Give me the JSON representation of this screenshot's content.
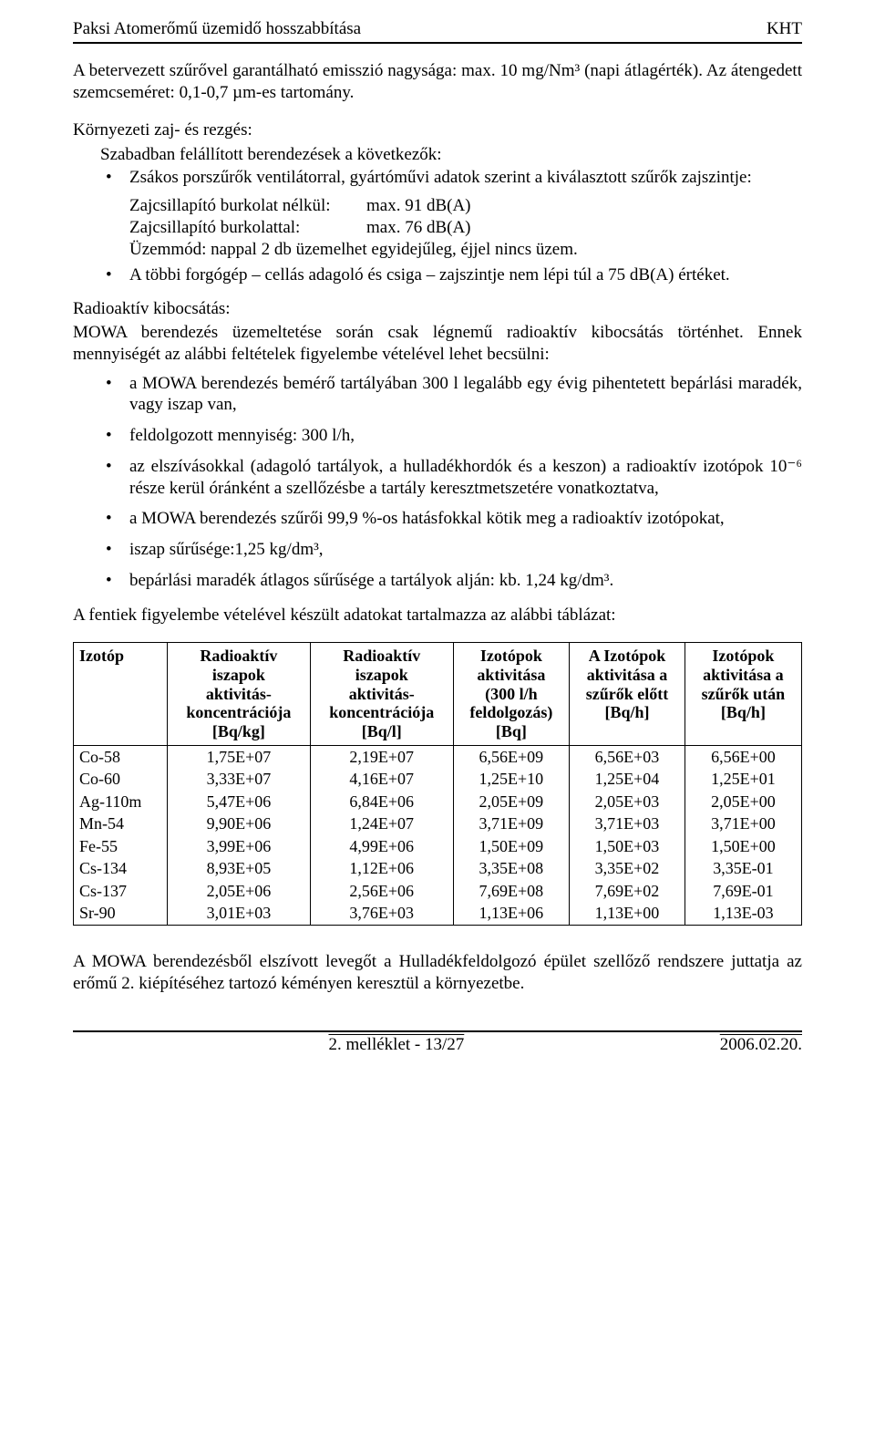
{
  "header": {
    "left": "Paksi Atomerőmű üzemidő hosszabbítása",
    "right": "KHT"
  },
  "intro": {
    "p1": "A betervezett szűrővel garantálható emisszió nagysága: max. 10 mg/Nm³ (napi átlagérték). Az átengedett  szemcseméret: 0,1-0,7 µm-es tartomány.",
    "noise_label": "Környezeti zaj- és rezgés:",
    "noise_line": "Szabadban felállított berendezések a következők:",
    "bullet1": "Zsákos porszűrők ventilátorral, gyártóművi adatok szerint a kiválasztott  szűrők zajszintje:",
    "pair1_label": "Zajcsillapító burkolat nélkül:",
    "pair1_value": "max. 91 dB(A)",
    "pair2_label": "Zajcsillapító burkolattal:",
    "pair2_value": "max. 76 dB(A)",
    "mode_line": "Üzemmód: nappal 2 db üzemelhet egyidejűleg, éjjel nincs üzem.",
    "bullet2": "A többi forgógép – cellás adagoló és csiga – zajszintje nem lépi túl a 75 dB(A) értéket."
  },
  "radio": {
    "label": "Radioaktív kibocsátás:",
    "text": "MOWA berendezés üzemeltetése során csak légnemű radioaktív kibocsátás történhet. Ennek mennyiségét az alábbi feltételek figyelembe vételével lehet becsülni:",
    "items": [
      "a MOWA berendezés bemérő tartályában 300 l legalább egy évig pihentetett bepárlási maradék, vagy iszap van,",
      "feldolgozott mennyiség: 300 l/h,",
      "az elszívásokkal (adagoló tartályok, a hulladékhordók és a keszon) a radioaktív izotópok 10⁻⁶ része kerül óránként a szellőzésbe a tartály keresztmetszetére vonatkoztatva,",
      "a MOWA berendezés szűrői 99,9 %-os hatásfokkal kötik meg a radioaktív izotópokat,",
      "iszap sűrűsége:1,25 kg/dm³,",
      "bepárlási maradék átlagos sűrűsége a tartályok alján: kb. 1,24 kg/dm³."
    ]
  },
  "table_intro": "A fentiek figyelembe vételével készült adatokat tartalmazza az alábbi táblázat:",
  "table": {
    "headers": [
      "Izotóp",
      "Radioaktív iszapok aktivitás-koncentrációja [Bq/kg]",
      "Radioaktív iszapok aktivitás-koncentrációja [Bq/l]",
      "Izotópok aktivitása (300 l/h feldolgozás) [Bq]",
      "A Izotópok aktivitása a szűrők előtt [Bq/h]",
      "Izotópok aktivitása a szűrők után [Bq/h]"
    ],
    "rows": [
      [
        "Co-58",
        "1,75E+07",
        "2,19E+07",
        "6,56E+09",
        "6,56E+03",
        "6,56E+00"
      ],
      [
        "Co-60",
        "3,33E+07",
        "4,16E+07",
        "1,25E+10",
        "1,25E+04",
        "1,25E+01"
      ],
      [
        "Ag-110m",
        "5,47E+06",
        "6,84E+06",
        "2,05E+09",
        "2,05E+03",
        "2,05E+00"
      ],
      [
        "Mn-54",
        "9,90E+06",
        "1,24E+07",
        "3,71E+09",
        "3,71E+03",
        "3,71E+00"
      ],
      [
        "Fe-55",
        "3,99E+06",
        "4,99E+06",
        "1,50E+09",
        "1,50E+03",
        "1,50E+00"
      ],
      [
        "Cs-134",
        "8,93E+05",
        "1,12E+06",
        "3,35E+08",
        "3,35E+02",
        "3,35E-01"
      ],
      [
        "Cs-137",
        "2,05E+06",
        "2,56E+06",
        "7,69E+08",
        "7,69E+02",
        "7,69E-01"
      ],
      [
        "Sr-90",
        "3,01E+03",
        "3,76E+03",
        "1,13E+06",
        "1,13E+00",
        "1,13E-03"
      ]
    ]
  },
  "outro": "A MOWA berendezésből elszívott levegőt a Hulladékfeldolgozó épület szellőző rendszere juttatja az erőmű 2. kiépítéséhez tartozó kéményen keresztül a környezetbe.",
  "footer": {
    "left": " ",
    "center": "2. melléklet - 13/27",
    "right": "2006.02.20."
  }
}
